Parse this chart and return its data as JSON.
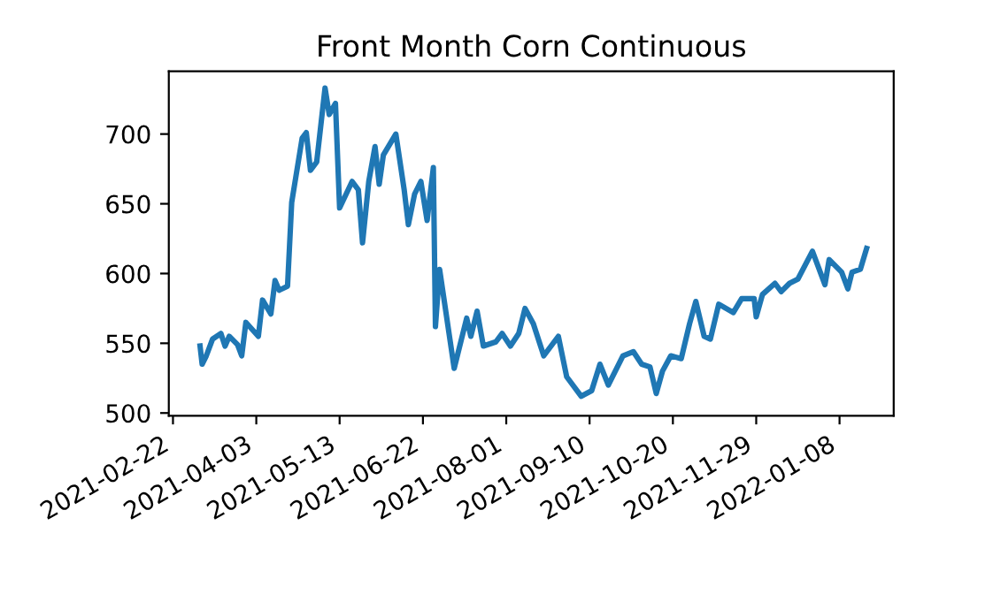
{
  "chart_data": {
    "type": "line",
    "title": "Front Month Corn Continuous",
    "x": [
      "2021-03-07",
      "2021-03-08",
      "2021-03-10",
      "2021-03-13",
      "2021-03-17",
      "2021-03-19",
      "2021-03-21",
      "2021-03-25",
      "2021-03-27",
      "2021-03-29",
      "2021-04-04",
      "2021-04-06",
      "2021-04-10",
      "2021-04-12",
      "2021-04-14",
      "2021-04-18",
      "2021-04-20",
      "2021-04-25",
      "2021-04-27",
      "2021-04-29",
      "2021-05-02",
      "2021-05-06",
      "2021-05-08",
      "2021-05-11",
      "2021-05-13",
      "2021-05-19",
      "2021-05-22",
      "2021-05-24",
      "2021-05-27",
      "2021-05-30",
      "2021-06-01",
      "2021-06-03",
      "2021-06-09",
      "2021-06-13",
      "2021-06-15",
      "2021-06-18",
      "2021-06-21",
      "2021-06-24",
      "2021-06-27",
      "2021-06-28",
      "2021-06-30",
      "2021-07-07",
      "2021-07-13",
      "2021-07-15",
      "2021-07-18",
      "2021-07-21",
      "2021-07-27",
      "2021-07-30",
      "2021-08-03",
      "2021-08-07",
      "2021-08-10",
      "2021-08-14",
      "2021-08-19",
      "2021-08-26",
      "2021-08-30",
      "2021-09-06",
      "2021-09-11",
      "2021-09-15",
      "2021-09-19",
      "2021-09-26",
      "2021-10-01",
      "2021-10-05",
      "2021-10-09",
      "2021-10-12",
      "2021-10-15",
      "2021-10-19",
      "2021-10-24",
      "2021-10-28",
      "2021-10-31",
      "2021-11-04",
      "2021-11-07",
      "2021-11-11",
      "2021-11-18",
      "2021-11-22",
      "2021-11-28",
      "2021-11-29",
      "2021-12-02",
      "2021-12-08",
      "2021-12-11",
      "2021-12-15",
      "2021-12-19",
      "2021-12-26",
      "2022-01-01",
      "2022-01-03",
      "2022-01-09",
      "2022-01-12",
      "2022-01-14",
      "2022-01-18",
      "2022-01-21"
    ],
    "series": [
      {
        "color": "#1f77b4",
        "values": [
          548,
          535,
          541,
          553,
          557,
          548,
          555,
          549,
          541,
          565,
          555,
          581,
          571,
          595,
          588,
          591,
          651,
          697,
          701,
          674,
          680,
          733,
          714,
          722,
          647,
          666,
          660,
          622,
          666,
          691,
          664,
          685,
          700,
          660,
          635,
          657,
          666,
          638,
          676,
          562,
          603,
          532,
          568,
          555,
          573,
          548,
          551,
          557,
          548,
          557,
          575,
          564,
          541,
          555,
          526,
          512,
          516,
          535,
          520,
          541,
          544,
          535,
          533,
          514,
          530,
          541,
          539,
          564,
          580,
          555,
          553,
          578,
          572,
          582,
          582,
          569,
          585,
          593,
          587,
          593,
          596,
          616,
          592,
          610,
          601,
          589,
          601,
          603,
          618
        ]
      }
    ],
    "xlim": [
      "2021-02-20",
      "2022-02-03"
    ],
    "xticks": [
      "2021-02-22",
      "2021-04-03",
      "2021-05-13",
      "2021-06-22",
      "2021-08-01",
      "2021-09-10",
      "2021-10-20",
      "2021-11-29",
      "2022-01-08"
    ],
    "ylim": [
      498,
      745
    ],
    "yticks": [
      500,
      550,
      600,
      650,
      700
    ],
    "grid": false,
    "legend": false,
    "marker": "none",
    "line_style": "solid"
  }
}
